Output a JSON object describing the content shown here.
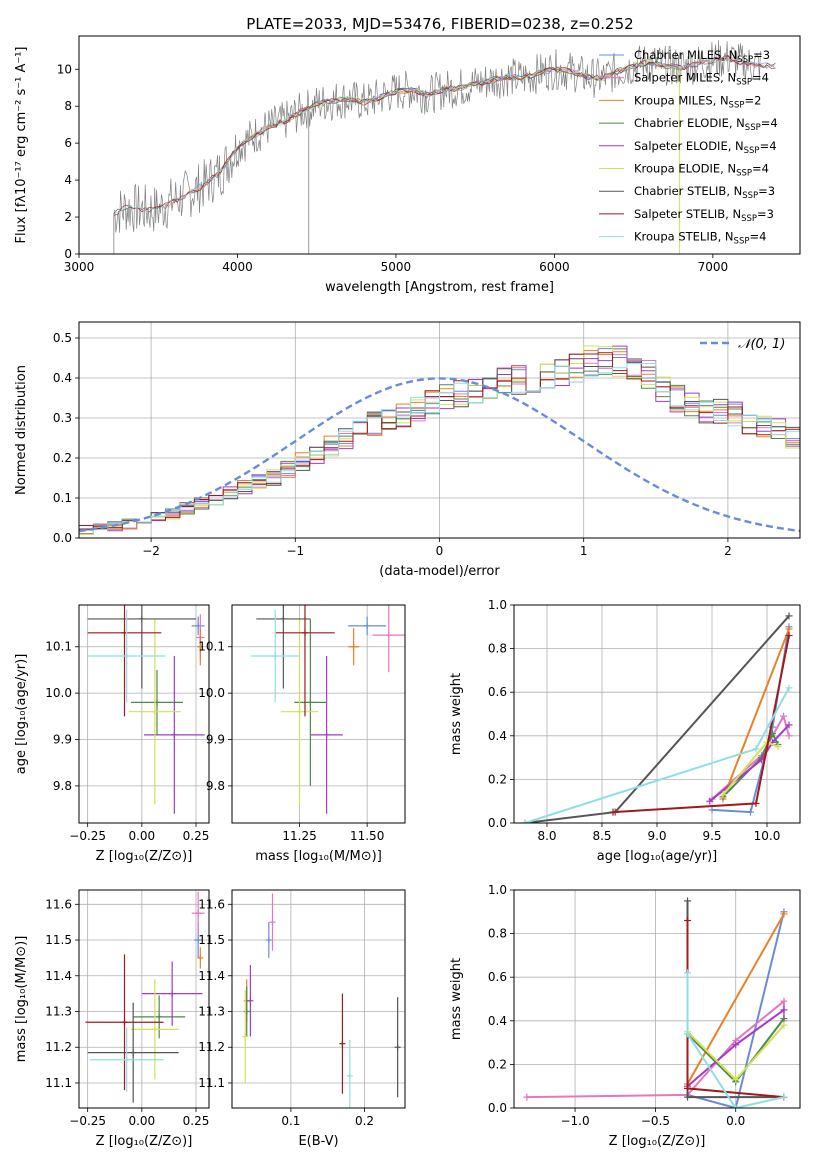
{
  "chart_data": [
    {
      "id": "spectrum",
      "type": "line",
      "title": "PLATE=2033, MJD=53476, FIBERID=0238, z=0.252",
      "xlabel": "wavelength [Angstrom, rest frame]",
      "ylabel": "Flux [fλ10⁻¹⁷ erg cm⁻² s⁻¹ A⁻¹]",
      "xlim": [
        3000,
        7550
      ],
      "ylim": [
        0,
        11.8
      ],
      "xticks": [
        3000,
        4000,
        5000,
        6000,
        7000
      ],
      "yticks": [
        0,
        2,
        4,
        6,
        8,
        10
      ],
      "grid": false,
      "legend_position": "top-right",
      "observed": {
        "color": "#808080",
        "x": [
          3220,
          3300,
          3400,
          3500,
          3600,
          3700,
          3800,
          3900,
          4000,
          4100,
          4200,
          4300,
          4400,
          4500,
          4600,
          4700,
          4800,
          4900,
          5000,
          5100,
          5200,
          5300,
          5400,
          5500,
          5600,
          5700,
          5800,
          5900,
          6000,
          6100,
          6200,
          6300,
          6400,
          6500,
          6600,
          6700,
          6800,
          6900,
          7000,
          7100,
          7200,
          7300
        ],
        "y": [
          2.2,
          2.5,
          2.4,
          2.4,
          2.9,
          3.3,
          3.8,
          4.5,
          5.8,
          6.4,
          6.9,
          7.2,
          7.7,
          8.1,
          8.3,
          8.4,
          8.2,
          8.5,
          8.8,
          8.9,
          8.6,
          8.9,
          9.0,
          9.2,
          9.4,
          9.6,
          9.5,
          9.8,
          10.0,
          9.9,
          9.6,
          9.5,
          9.9,
          10.2,
          10.4,
          10.2,
          10.1,
          10.3,
          10.5,
          10.6,
          10.3,
          10.2
        ]
      },
      "models": [
        {
          "name": "Chabrier MILES, N$_{SSP}$=3",
          "label": "Chabrier MILES, N",
          "sub": "SSP",
          "suffix": "=3",
          "color": "#6a8cd8",
          "xrange": [
            3540,
            7400
          ]
        },
        {
          "name": "Salpeter MILES, N$_{SSP}$=4",
          "label": "Salpeter MILES, N",
          "sub": "SSP",
          "suffix": "=4",
          "color": "#e377c2",
          "xrange": [
            3540,
            7400
          ]
        },
        {
          "name": "Kroupa MILES, N$_{SSP}$=2",
          "label": "Kroupa MILES, N",
          "sub": "SSP",
          "suffix": "=2",
          "color": "#e8812a",
          "xrange": [
            3540,
            7400
          ]
        },
        {
          "name": "Chabrier ELODIE, N$_{SSP}$=4",
          "label": "Chabrier ELODIE, N",
          "sub": "SSP",
          "suffix": "=4",
          "color": "#4d8a4d",
          "xrange": [
            3920,
            6800
          ]
        },
        {
          "name": "Salpeter ELODIE, N$_{SSP}$=4",
          "label": "Salpeter ELODIE, N",
          "sub": "SSP",
          "suffix": "=4",
          "color": "#a33cc4",
          "xrange": [
            3920,
            6800
          ]
        },
        {
          "name": "Kroupa ELODIE, N$_{SSP}$=4",
          "label": "Kroupa ELODIE, N",
          "sub": "SSP",
          "suffix": "=4",
          "color": "#d4e157",
          "xrange": [
            3920,
            6800
          ]
        },
        {
          "name": "Chabrier STELIB, N$_{SSP}$=3",
          "label": "Chabrier STELIB, N",
          "sub": "SSP",
          "suffix": "=3",
          "color": "#555555",
          "xrange": [
            3220,
            7400
          ]
        },
        {
          "name": "Salpeter STELIB, N$_{SSP}$=3",
          "label": "Salpeter STELIB, N",
          "sub": "SSP",
          "suffix": "=3",
          "color": "#a3191c",
          "xrange": [
            3220,
            7400
          ]
        },
        {
          "name": "Kroupa STELIB, N$_{SSP}$=4",
          "label": "Kroupa STELIB, N",
          "sub": "SSP",
          "suffix": "=4",
          "color": "#8edfe3",
          "xrange": [
            3220,
            7400
          ]
        }
      ]
    },
    {
      "id": "residuals",
      "type": "histogram",
      "xlabel": "(data-model)/error",
      "ylabel": "Normed distribution",
      "xlim": [
        -2.5,
        2.5
      ],
      "ylim": [
        0,
        0.54
      ],
      "xticks": [
        -2,
        -1,
        0,
        1,
        2
      ],
      "yticks": [
        0.0,
        0.1,
        0.2,
        0.3,
        0.4,
        0.5
      ],
      "grid": true,
      "legend_position": "top-right",
      "legend_label": "𝒩(0, 1)",
      "reference_color": "#6a8cd8",
      "bin_width": 0.1,
      "bin_start": -2.5,
      "base": [
        0.02,
        0.025,
        0.03,
        0.035,
        0.045,
        0.055,
        0.06,
        0.075,
        0.085,
        0.1,
        0.11,
        0.125,
        0.14,
        0.15,
        0.17,
        0.19,
        0.21,
        0.23,
        0.25,
        0.27,
        0.285,
        0.3,
        0.31,
        0.325,
        0.34,
        0.35,
        0.36,
        0.37,
        0.38,
        0.39,
        0.395,
        0.4,
        0.41,
        0.42,
        0.43,
        0.44,
        0.45,
        0.44,
        0.42,
        0.41,
        0.37,
        0.35,
        0.33,
        0.32,
        0.32,
        0.31,
        0.29,
        0.28,
        0.27,
        0.25,
        0.23,
        0.21,
        0.19,
        0.17,
        0.155,
        0.14,
        0.125,
        0.11,
        0.1,
        0.09,
        0.08,
        0.07,
        0.06,
        0.055,
        0.05,
        0.045,
        0.04,
        0.035,
        0.03,
        0.028,
        0.025,
        0.025,
        0.025,
        0.025,
        0.025,
        0.025,
        0.025,
        0.025,
        0.025,
        0.025
      ],
      "series_colors": [
        "#6a8cd8",
        "#e377c2",
        "#e8812a",
        "#4d8a4d",
        "#a33cc4",
        "#d4e157",
        "#555555",
        "#a3191c",
        "#8edfe3"
      ]
    },
    {
      "id": "age-vs-Z",
      "type": "errorbar",
      "xlabel": "Z [log₁₀(Z/Z⊙)]",
      "ylabel": "age  [log₁₀(age/yr)]",
      "xlim": [
        -0.29,
        0.31
      ],
      "ylim": [
        9.72,
        10.19
      ],
      "xticks": [
        -0.25,
        0.0,
        0.25
      ],
      "xticklabels": [
        "−0.25",
        "0.00",
        "0.25"
      ],
      "yticks": [
        9.8,
        9.9,
        10.0,
        10.1
      ],
      "grid": true,
      "points": [
        {
          "x": 0.26,
          "y": 10.145,
          "xerr": 0.03,
          "yerr": 0.02,
          "color": "#6a8cd8"
        },
        {
          "x": 0.27,
          "y": 10.12,
          "xerr": 0.02,
          "yerr": 0.05,
          "color": "#e377c2"
        },
        {
          "x": 0.27,
          "y": 10.1,
          "xerr": 0.01,
          "yerr": 0.04,
          "color": "#e8812a"
        },
        {
          "x": 0.07,
          "y": 9.98,
          "xerr": 0.12,
          "yerr": 0.07,
          "color": "#4d8a4d"
        },
        {
          "x": 0.15,
          "y": 9.91,
          "xerr": 0.14,
          "yerr": 0.17,
          "color": "#a33cc4"
        },
        {
          "x": 0.06,
          "y": 9.96,
          "xerr": 0.12,
          "yerr": 0.2,
          "color": "#d4e157"
        },
        {
          "x": 0.0,
          "y": 10.16,
          "xerr": 0.25,
          "yerr": 0.15,
          "color": "#555555"
        },
        {
          "x": -0.08,
          "y": 10.13,
          "xerr": 0.17,
          "yerr": 0.18,
          "color": "#a3191c"
        },
        {
          "x": -0.07,
          "y": 10.08,
          "xerr": 0.18,
          "yerr": 0.1,
          "color": "#8edfe3"
        }
      ]
    },
    {
      "id": "age-vs-mass",
      "type": "errorbar",
      "xlabel": "mass [log₁₀(M/M⊙)]",
      "ylabel": "",
      "xlim": [
        11.0,
        11.64
      ],
      "ylim": [
        9.72,
        10.19
      ],
      "xticks": [
        11.25,
        11.5
      ],
      "xticklabels": [
        "11.25",
        "11.50"
      ],
      "yticks": [
        9.8,
        9.9,
        10.0,
        10.1
      ],
      "grid": true,
      "points": [
        {
          "x": 11.5,
          "y": 10.145,
          "xerr": 0.07,
          "yerr": 0.02,
          "color": "#6a8cd8"
        },
        {
          "x": 11.58,
          "y": 10.125,
          "xerr": 0.06,
          "yerr": 0.08,
          "color": "#e377c2"
        },
        {
          "x": 11.45,
          "y": 10.1,
          "xerr": 0.02,
          "yerr": 0.04,
          "color": "#e8812a"
        },
        {
          "x": 11.29,
          "y": 9.98,
          "xerr": 0.06,
          "yerr": 0.18,
          "color": "#4d8a4d"
        },
        {
          "x": 11.35,
          "y": 9.91,
          "xerr": 0.06,
          "yerr": 0.17,
          "color": "#a33cc4"
        },
        {
          "x": 11.25,
          "y": 9.96,
          "xerr": 0.07,
          "yerr": 0.2,
          "color": "#d4e157"
        },
        {
          "x": 11.19,
          "y": 10.16,
          "xerr": 0.1,
          "yerr": 0.15,
          "color": "#555555"
        },
        {
          "x": 11.27,
          "y": 10.13,
          "xerr": 0.11,
          "yerr": 0.18,
          "color": "#a3191c"
        },
        {
          "x": 11.16,
          "y": 10.08,
          "xerr": 0.09,
          "yerr": 0.1,
          "color": "#8edfe3"
        }
      ]
    },
    {
      "id": "massweight-vs-age",
      "type": "line",
      "xlabel": "age  [log₁₀(age/yr)]",
      "ylabel": "mass weight",
      "xlim": [
        7.7,
        10.3
      ],
      "ylim": [
        0,
        1.0
      ],
      "xticks": [
        8.0,
        8.5,
        9.0,
        9.5,
        10.0
      ],
      "yticks": [
        0.0,
        0.2,
        0.4,
        0.6,
        0.8,
        1.0
      ],
      "grid": true,
      "series": [
        {
          "color": "#6a8cd8",
          "x": [
            9.5,
            9.85,
            10.05,
            10.2
          ],
          "y": [
            0.06,
            0.05,
            0.44,
            0.9
          ]
        },
        {
          "color": "#e377c2",
          "x": [
            9.5,
            9.95,
            10.15,
            10.2
          ],
          "y": [
            0.11,
            0.31,
            0.49,
            0.4
          ]
        },
        {
          "color": "#e8812a",
          "x": [
            9.6,
            10.2
          ],
          "y": [
            0.11,
            0.89
          ]
        },
        {
          "color": "#4d8a4d",
          "x": [
            9.6,
            9.95,
            10.05,
            10.1
          ],
          "y": [
            0.12,
            0.3,
            0.41,
            0.36
          ]
        },
        {
          "color": "#a33cc4",
          "x": [
            9.48,
            9.95,
            10.05,
            10.2
          ],
          "y": [
            0.1,
            0.29,
            0.37,
            0.45
          ]
        },
        {
          "color": "#d4e157",
          "x": [
            9.6,
            10.0,
            10.1
          ],
          "y": [
            0.13,
            0.37,
            0.35
          ]
        },
        {
          "color": "#555555",
          "x": [
            7.8,
            8.62,
            10.2
          ],
          "y": [
            0.0,
            0.05,
            0.95
          ]
        },
        {
          "color": "#a3191c",
          "x": [
            8.6,
            9.9,
            10.2
          ],
          "y": [
            0.05,
            0.09,
            0.86
          ]
        },
        {
          "color": "#8edfe3",
          "x": [
            7.8,
            9.9,
            10.2
          ],
          "y": [
            0.0,
            0.34,
            0.62
          ]
        }
      ]
    },
    {
      "id": "mass-vs-Z",
      "type": "errorbar",
      "xlabel": "Z [log₁₀(Z/Z⊙)]",
      "ylabel": "mass [log₁₀(M/M⊙)]",
      "xlim": [
        -0.29,
        0.31
      ],
      "ylim": [
        11.03,
        11.64
      ],
      "xticks": [
        -0.25,
        0.0,
        0.25
      ],
      "xticklabels": [
        "−0.25",
        "0.00",
        "0.25"
      ],
      "yticks": [
        11.1,
        11.2,
        11.3,
        11.4,
        11.5,
        11.6
      ],
      "grid": true,
      "points": [
        {
          "x": 0.26,
          "y": 11.5,
          "xerr": 0.02,
          "yerr": 0.05,
          "color": "#6a8cd8"
        },
        {
          "x": 0.26,
          "y": 11.575,
          "xerr": 0.03,
          "yerr": 0.06,
          "color": "#e377c2"
        },
        {
          "x": 0.27,
          "y": 11.45,
          "xerr": 0.01,
          "yerr": 0.03,
          "color": "#e8812a"
        },
        {
          "x": 0.08,
          "y": 11.285,
          "xerr": 0.12,
          "yerr": 0.06,
          "color": "#4d8a4d"
        },
        {
          "x": 0.14,
          "y": 11.35,
          "xerr": 0.14,
          "yerr": 0.09,
          "color": "#a33cc4"
        },
        {
          "x": 0.06,
          "y": 11.25,
          "xerr": 0.11,
          "yerr": 0.14,
          "color": "#d4e157"
        },
        {
          "x": -0.04,
          "y": 11.185,
          "xerr": 0.21,
          "yerr": 0.14,
          "color": "#555555"
        },
        {
          "x": -0.08,
          "y": 11.27,
          "xerr": 0.18,
          "yerr": 0.19,
          "color": "#a3191c"
        },
        {
          "x": -0.07,
          "y": 11.165,
          "xerr": 0.17,
          "yerr": 0.09,
          "color": "#8edfe3"
        }
      ]
    },
    {
      "id": "mass-vs-EBV",
      "type": "errorbar",
      "xlabel": "E(B-V)",
      "ylabel": "",
      "xlim": [
        0.02,
        0.255
      ],
      "ylim": [
        11.03,
        11.64
      ],
      "xticks": [
        0.1,
        0.2
      ],
      "xticklabels": [
        "0.1",
        "0.2"
      ],
      "yticks": [
        11.1,
        11.2,
        11.3,
        11.4,
        11.5,
        11.6
      ],
      "grid": true,
      "points": [
        {
          "x": 0.07,
          "y": 11.5,
          "xerr": 0,
          "yerr": 0.05,
          "color": "#6a8cd8"
        },
        {
          "x": 0.075,
          "y": 11.55,
          "xerr": 0,
          "yerr": 0.08,
          "color": "#e377c2"
        },
        {
          "x": 0.04,
          "y": 11.33,
          "xerr": 0,
          "yerr": 0.06,
          "color": "#e8812a"
        },
        {
          "x": 0.04,
          "y": 11.3,
          "xerr": 0,
          "yerr": 0.07,
          "color": "#4d8a4d"
        },
        {
          "x": 0.045,
          "y": 11.33,
          "xerr": 0,
          "yerr": 0.1,
          "color": "#a33cc4"
        },
        {
          "x": 0.038,
          "y": 11.23,
          "xerr": 0,
          "yerr": 0.13,
          "color": "#d4e157"
        },
        {
          "x": 0.245,
          "y": 11.2,
          "xerr": 0,
          "yerr": 0.14,
          "color": "#555555"
        },
        {
          "x": 0.17,
          "y": 11.21,
          "xerr": 0,
          "yerr": 0.14,
          "color": "#a3191c"
        },
        {
          "x": 0.18,
          "y": 11.12,
          "xerr": 0,
          "yerr": 0.1,
          "color": "#8edfe3"
        }
      ]
    },
    {
      "id": "massweight-vs-Z",
      "type": "line",
      "xlabel": "Z [log₁₀(Z/Z⊙)]",
      "ylabel": "mass weight",
      "xlim": [
        -1.38,
        0.4
      ],
      "ylim": [
        0,
        1.0
      ],
      "xticks": [
        -1.0,
        -0.5,
        0.0
      ],
      "xticklabels": [
        "−1.0",
        "−0.5",
        "0.0"
      ],
      "yticks": [
        0.0,
        0.2,
        0.4,
        0.6,
        0.8,
        1.0
      ],
      "grid": true,
      "series": [
        {
          "color": "#6a8cd8",
          "x": [
            -0.3,
            0.0,
            0.3
          ],
          "y": [
            0.06,
            0.0,
            0.9
          ]
        },
        {
          "color": "#e377c2",
          "x": [
            -1.3,
            -0.3,
            0.0,
            0.3,
            0.3
          ],
          "y": [
            0.05,
            0.06,
            0.31,
            0.49,
            0.4
          ]
        },
        {
          "color": "#e8812a",
          "x": [
            -0.3,
            0.3
          ],
          "y": [
            0.11,
            0.89
          ]
        },
        {
          "color": "#4d8a4d",
          "x": [
            -0.3,
            0.0,
            0.3
          ],
          "y": [
            0.34,
            0.12,
            0.41
          ]
        },
        {
          "color": "#a33cc4",
          "x": [
            -0.3,
            0.0,
            0.3
          ],
          "y": [
            0.1,
            0.29,
            0.45
          ]
        },
        {
          "color": "#d4e157",
          "x": [
            -0.3,
            0.0,
            0.3
          ],
          "y": [
            0.35,
            0.13,
            0.38
          ]
        },
        {
          "color": "#555555",
          "x": [
            -0.3,
            -0.3,
            0.3
          ],
          "y": [
            0.95,
            0.05,
            0.05
          ]
        },
        {
          "color": "#a3191c",
          "x": [
            -0.3,
            -0.3,
            0.3
          ],
          "y": [
            0.86,
            0.09,
            0.05
          ]
        },
        {
          "color": "#8edfe3",
          "x": [
            -0.3,
            -0.3,
            0.0,
            0.3
          ],
          "y": [
            0.62,
            0.34,
            0.0,
            0.05
          ]
        }
      ]
    }
  ]
}
